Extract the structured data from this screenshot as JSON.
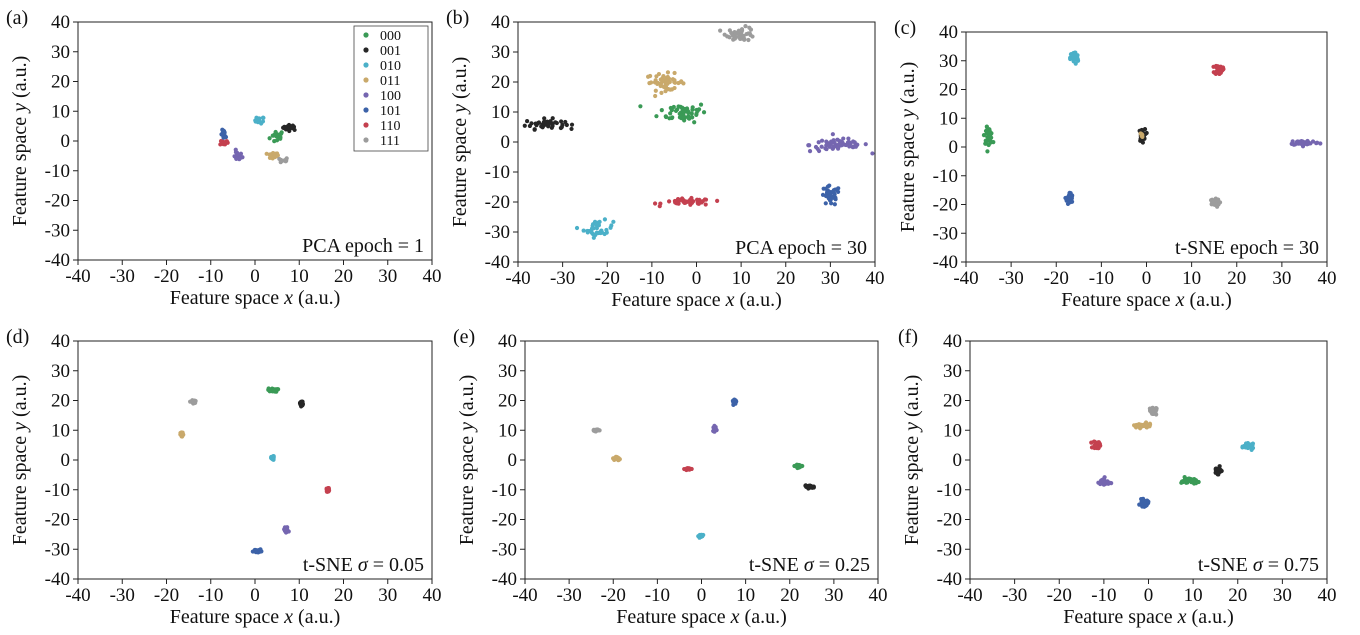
{
  "colors": {
    "000": "#3a9a56",
    "001": "#262626",
    "010": "#4bb0c8",
    "011": "#c9a96b",
    "100": "#7566b0",
    "101": "#3c62a8",
    "110": "#c4404f",
    "111": "#9c9c9c"
  },
  "chart_data": [
    {
      "type": "scatter",
      "panel_label": "(a)",
      "annotation": "PCA epoch = 1",
      "xlabel": "Feature space x (a.u.)",
      "ylabel": "Feature space y (a.u.)",
      "xlim": [
        -40,
        40
      ],
      "ylim": [
        -40,
        40
      ],
      "xticks": [
        "-40",
        "-30",
        "-20",
        "-10",
        "0",
        "10",
        "20",
        "30",
        "40"
      ],
      "yticks": [
        "40",
        "30",
        "20",
        "10",
        "0",
        "-10",
        "-20",
        "-30",
        "-40"
      ],
      "legend_placement": "top-right",
      "legend": [
        "000",
        "001",
        "010",
        "011",
        "100",
        "101",
        "110",
        "111"
      ],
      "series": [
        {
          "name": "000",
          "center": [
            5,
            1.5
          ],
          "spread": [
            1.5,
            2
          ],
          "n": 18
        },
        {
          "name": "001",
          "center": [
            8,
            4.5
          ],
          "spread": [
            1.5,
            0.8
          ],
          "n": 20
        },
        {
          "name": "010",
          "center": [
            1,
            7
          ],
          "spread": [
            1,
            1
          ],
          "n": 15
        },
        {
          "name": "011",
          "center": [
            4,
            -5
          ],
          "spread": [
            1.2,
            1
          ],
          "n": 18
        },
        {
          "name": "100",
          "center": [
            -4,
            -5
          ],
          "spread": [
            1,
            1.5
          ],
          "n": 18
        },
        {
          "name": "101",
          "center": [
            -7,
            2
          ],
          "spread": [
            0.6,
            1.5
          ],
          "n": 14
        },
        {
          "name": "110",
          "center": [
            -7,
            -0.5
          ],
          "spread": [
            0.8,
            0.8
          ],
          "n": 12
        },
        {
          "name": "111",
          "center": [
            6.5,
            -6.5
          ],
          "spread": [
            0.8,
            0.8
          ],
          "n": 12
        }
      ]
    },
    {
      "type": "scatter",
      "panel_label": "(b)",
      "annotation": "PCA epoch = 30",
      "xlabel": "Feature space x (a.u.)",
      "ylabel": "Feature space y (a.u.)",
      "xlim": [
        -40,
        40
      ],
      "ylim": [
        -40,
        40
      ],
      "xticks": [
        "-40",
        "-30",
        "-20",
        "-10",
        "0",
        "10",
        "20",
        "30",
        "40"
      ],
      "yticks": [
        "40",
        "30",
        "20",
        "10",
        "0",
        "-10",
        "-20",
        "-30",
        "-40"
      ],
      "series": [
        {
          "name": "000",
          "center": [
            -3,
            10
          ],
          "spread": [
            5,
            3
          ],
          "n": 55
        },
        {
          "name": "001",
          "center": [
            -34,
            6
          ],
          "spread": [
            4,
            1.5
          ],
          "n": 45
        },
        {
          "name": "010",
          "center": [
            -22,
            -29
          ],
          "spread": [
            3,
            2.5
          ],
          "n": 35
        },
        {
          "name": "011",
          "center": [
            -7,
            20
          ],
          "spread": [
            4,
            2.5
          ],
          "n": 50
        },
        {
          "name": "100",
          "center": [
            32,
            -1
          ],
          "spread": [
            6,
            2
          ],
          "n": 60
        },
        {
          "name": "101",
          "center": [
            30,
            -18
          ],
          "spread": [
            2,
            3
          ],
          "n": 35
        },
        {
          "name": "110",
          "center": [
            -2,
            -20
          ],
          "spread": [
            5,
            1
          ],
          "n": 45
        },
        {
          "name": "111",
          "center": [
            10,
            36
          ],
          "spread": [
            3,
            2
          ],
          "n": 45
        }
      ]
    },
    {
      "type": "scatter",
      "panel_label": "(c)",
      "annotation": "t-SNE epoch = 30",
      "xlabel": "Feature space x (a.u.)",
      "ylabel": "Feature space y (a.u.)",
      "xlim": [
        -40,
        40
      ],
      "ylim": [
        -40,
        40
      ],
      "xticks": [
        "-40",
        "-30",
        "-20",
        "-10",
        "0",
        "10",
        "20",
        "30",
        "40"
      ],
      "yticks": [
        "40",
        "30",
        "20",
        "10",
        "0",
        "-10",
        "-20",
        "-30",
        "-40"
      ],
      "series": [
        {
          "name": "000",
          "center": [
            -35,
            4
          ],
          "spread": [
            0.8,
            2.5
          ],
          "n": 40
        },
        {
          "name": "001",
          "center": [
            -1,
            4
          ],
          "spread": [
            0.6,
            2
          ],
          "n": 40
        },
        {
          "name": "010",
          "center": [
            -16,
            31
          ],
          "spread": [
            0.8,
            2
          ],
          "n": 40
        },
        {
          "name": "011",
          "center": [
            -1,
            4
          ],
          "spread": [
            0.5,
            1.5
          ],
          "n": 5
        },
        {
          "name": "100",
          "center": [
            35,
            1.5
          ],
          "spread": [
            3,
            0.8
          ],
          "n": 40
        },
        {
          "name": "101",
          "center": [
            -17,
            -18
          ],
          "spread": [
            0.6,
            2
          ],
          "n": 40
        },
        {
          "name": "110",
          "center": [
            16,
            27
          ],
          "spread": [
            0.8,
            1.5
          ],
          "n": 40
        },
        {
          "name": "111",
          "center": [
            15,
            -19.5
          ],
          "spread": [
            1,
            1.2
          ],
          "n": 40
        }
      ]
    },
    {
      "type": "scatter",
      "panel_label": "(d)",
      "annotation": "t-SNE σ = 0.05",
      "xlabel": "Feature space x (a.u.)",
      "ylabel": "Feature space y (a.u.)",
      "xlim": [
        -40,
        40
      ],
      "ylim": [
        -40,
        40
      ],
      "xticks": [
        "-40",
        "-30",
        "-20",
        "-10",
        "0",
        "10",
        "20",
        "30",
        "40"
      ],
      "yticks": [
        "40",
        "30",
        "20",
        "10",
        "0",
        "-10",
        "-20",
        "-30",
        "-40"
      ],
      "series": [
        {
          "name": "000",
          "center": [
            4,
            23.5
          ],
          "spread": [
            1,
            0.5
          ],
          "n": 25
        },
        {
          "name": "001",
          "center": [
            10.5,
            19
          ],
          "spread": [
            0.3,
            0.8
          ],
          "n": 25
        },
        {
          "name": "010",
          "center": [
            4,
            0.5
          ],
          "spread": [
            0.3,
            0.7
          ],
          "n": 25
        },
        {
          "name": "011",
          "center": [
            -16.5,
            8.5
          ],
          "spread": [
            0.3,
            0.7
          ],
          "n": 25
        },
        {
          "name": "100",
          "center": [
            7,
            -23.5
          ],
          "spread": [
            0.5,
            1
          ],
          "n": 25
        },
        {
          "name": "101",
          "center": [
            0.5,
            -30.5
          ],
          "spread": [
            0.8,
            0.4
          ],
          "n": 25
        },
        {
          "name": "110",
          "center": [
            16.5,
            -10
          ],
          "spread": [
            0.3,
            0.6
          ],
          "n": 25
        },
        {
          "name": "111",
          "center": [
            -14,
            19.5
          ],
          "spread": [
            0.4,
            0.5
          ],
          "n": 25
        }
      ]
    },
    {
      "type": "scatter",
      "panel_label": "(e)",
      "annotation": "t-SNE σ = 0.25",
      "xlabel": "Feature space x (a.u.)",
      "ylabel": "Feature space y (a.u.)",
      "xlim": [
        -40,
        40
      ],
      "ylim": [
        -40,
        40
      ],
      "xticks": [
        "-40",
        "-30",
        "-20",
        "-10",
        "0",
        "10",
        "20",
        "30",
        "40"
      ],
      "yticks": [
        "40",
        "30",
        "20",
        "10",
        "0",
        "-10",
        "-20",
        "-30",
        "-40"
      ],
      "series": [
        {
          "name": "000",
          "center": [
            22,
            -2
          ],
          "spread": [
            1,
            0.4
          ],
          "n": 25
        },
        {
          "name": "001",
          "center": [
            24.5,
            -9
          ],
          "spread": [
            1,
            0.4
          ],
          "n": 25
        },
        {
          "name": "010",
          "center": [
            0,
            -25.5
          ],
          "spread": [
            0.6,
            0.4
          ],
          "n": 25
        },
        {
          "name": "011",
          "center": [
            -19,
            0.5
          ],
          "spread": [
            0.5,
            0.5
          ],
          "n": 25
        },
        {
          "name": "100",
          "center": [
            3,
            10.5
          ],
          "spread": [
            0.3,
            0.8
          ],
          "n": 25
        },
        {
          "name": "101",
          "center": [
            7.5,
            19.5
          ],
          "spread": [
            0.4,
            0.6
          ],
          "n": 25
        },
        {
          "name": "110",
          "center": [
            -3,
            -3
          ],
          "spread": [
            0.7,
            0.3
          ],
          "n": 25
        },
        {
          "name": "111",
          "center": [
            -24,
            10
          ],
          "spread": [
            0.6,
            0.3
          ],
          "n": 25
        }
      ]
    },
    {
      "type": "scatter",
      "panel_label": "(f)",
      "annotation": "t-SNE σ = 0.75",
      "xlabel": "Feature space x (a.u.)",
      "ylabel": "Feature space y (a.u.)",
      "xlim": [
        -40,
        40
      ],
      "ylim": [
        -40,
        40
      ],
      "xticks": [
        "-40",
        "-30",
        "-20",
        "-10",
        "0",
        "10",
        "20",
        "30",
        "40"
      ],
      "yticks": [
        "40",
        "30",
        "20",
        "10",
        "0",
        "-10",
        "-20",
        "-30",
        "-40"
      ],
      "series": [
        {
          "name": "000",
          "center": [
            9,
            -7
          ],
          "spread": [
            1.5,
            1
          ],
          "n": 35
        },
        {
          "name": "001",
          "center": [
            15.5,
            -3.5
          ],
          "spread": [
            0.7,
            1
          ],
          "n": 35
        },
        {
          "name": "010",
          "center": [
            22.5,
            4.5
          ],
          "spread": [
            1,
            0.8
          ],
          "n": 35
        },
        {
          "name": "011",
          "center": [
            -1.5,
            11.5
          ],
          "spread": [
            2,
            0.7
          ],
          "n": 35
        },
        {
          "name": "100",
          "center": [
            -10,
            -7.5
          ],
          "spread": [
            1,
            1.2
          ],
          "n": 35
        },
        {
          "name": "101",
          "center": [
            -1,
            -14.5
          ],
          "spread": [
            0.8,
            1
          ],
          "n": 35
        },
        {
          "name": "110",
          "center": [
            -11.5,
            5
          ],
          "spread": [
            0.8,
            1.2
          ],
          "n": 35
        },
        {
          "name": "111",
          "center": [
            1,
            16.5
          ],
          "spread": [
            0.7,
            1.2
          ],
          "n": 35
        }
      ]
    }
  ]
}
